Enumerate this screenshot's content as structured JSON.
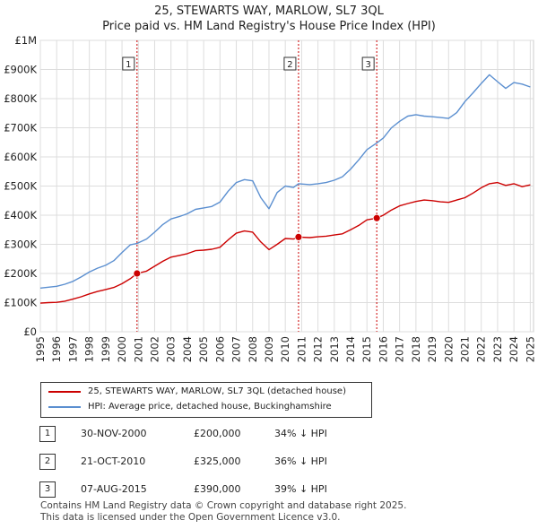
{
  "title_line1": "25, STEWARTS WAY, MARLOW, SL7 3QL",
  "title_line2": "Price paid vs. HM Land Registry's House Price Index (HPI)",
  "colors": {
    "property": "#cc0000",
    "hpi": "#5b8fd0",
    "marker_line": "#cc0000",
    "grid": "#dddddd"
  },
  "chart_data": {
    "type": "line",
    "title": "Price paid vs. HM Land Registry's House Price Index (HPI)",
    "xlim": [
      1995.0,
      2025.2
    ],
    "ylim": [
      0,
      1000000
    ],
    "y_ticks": [
      0,
      100000,
      200000,
      300000,
      400000,
      500000,
      600000,
      700000,
      800000,
      900000,
      1000000
    ],
    "y_tick_labels": [
      "£0",
      "£100K",
      "£200K",
      "£300K",
      "£400K",
      "£500K",
      "£600K",
      "£700K",
      "£800K",
      "£900K",
      "£1M"
    ],
    "x_ticks": [
      1995,
      1996,
      1997,
      1998,
      1999,
      2000,
      2001,
      2002,
      2003,
      2004,
      2005,
      2006,
      2007,
      2008,
      2009,
      2010,
      2011,
      2012,
      2013,
      2014,
      2015,
      2016,
      2017,
      2018,
      2019,
      2020,
      2021,
      2022,
      2023,
      2024,
      2025
    ],
    "x_tick_labels": [
      "1995",
      "1996",
      "1997",
      "1998",
      "1999",
      "2000",
      "2001",
      "2002",
      "2003",
      "2004",
      "2005",
      "2006",
      "2007",
      "2008",
      "2009",
      "2010",
      "2011",
      "2012",
      "2013",
      "2014",
      "2015",
      "2016",
      "2017",
      "2018",
      "2019",
      "2020",
      "2021",
      "2022",
      "2023",
      "2024",
      "2025"
    ],
    "series": [
      {
        "name": "25, STEWARTS WAY, MARLOW, SL7 3QL (detached house)",
        "color": "#cc0000",
        "x": [
          1995.0,
          1995.5,
          1996.0,
          1996.5,
          1997.0,
          1997.5,
          1998.0,
          1998.5,
          1999.0,
          1999.5,
          2000.0,
          2000.5,
          2000.92,
          2001.5,
          2002.0,
          2002.5,
          2003.0,
          2003.5,
          2004.0,
          2004.5,
          2005.0,
          2005.5,
          2006.0,
          2006.5,
          2007.0,
          2007.5,
          2008.0,
          2008.5,
          2009.0,
          2009.5,
          2010.0,
          2010.5,
          2010.81,
          2011.5,
          2012.0,
          2012.5,
          2013.0,
          2013.5,
          2014.0,
          2014.5,
          2015.0,
          2015.6,
          2016.0,
          2016.5,
          2017.0,
          2017.5,
          2018.0,
          2018.5,
          2019.0,
          2019.5,
          2020.0,
          2020.5,
          2021.0,
          2021.5,
          2022.0,
          2022.5,
          2023.0,
          2023.5,
          2024.0,
          2024.5,
          2025.0
        ],
        "values": [
          98000,
          100000,
          101000,
          105000,
          112000,
          120000,
          130000,
          138000,
          145000,
          152000,
          165000,
          182000,
          200000,
          208000,
          225000,
          242000,
          256000,
          262000,
          268000,
          278000,
          280000,
          283000,
          290000,
          315000,
          338000,
          346000,
          342000,
          308000,
          282000,
          300000,
          320000,
          318000,
          325000,
          323000,
          326000,
          328000,
          332000,
          336000,
          350000,
          365000,
          384000,
          390000,
          400000,
          418000,
          432000,
          440000,
          447000,
          452000,
          450000,
          446000,
          444000,
          452000,
          460000,
          476000,
          494000,
          508000,
          512000,
          502000,
          508000,
          498000,
          504000
        ]
      },
      {
        "name": "HPI: Average price, detached house, Buckinghamshire",
        "color": "#5b8fd0",
        "x": [
          1995.0,
          1995.5,
          1996.0,
          1996.5,
          1997.0,
          1997.5,
          1998.0,
          1998.5,
          1999.0,
          1999.5,
          2000.0,
          2000.5,
          2000.92,
          2001.5,
          2002.0,
          2002.5,
          2003.0,
          2003.5,
          2004.0,
          2004.5,
          2005.0,
          2005.5,
          2006.0,
          2006.5,
          2007.0,
          2007.5,
          2008.0,
          2008.5,
          2009.0,
          2009.5,
          2010.0,
          2010.5,
          2010.81,
          2011.5,
          2012.0,
          2012.5,
          2013.0,
          2013.5,
          2014.0,
          2014.5,
          2015.0,
          2015.6,
          2016.0,
          2016.5,
          2017.0,
          2017.5,
          2018.0,
          2018.5,
          2019.0,
          2019.5,
          2020.0,
          2020.5,
          2021.0,
          2021.5,
          2022.0,
          2022.5,
          2023.0,
          2023.5,
          2024.0,
          2024.5,
          2025.0
        ],
        "values": [
          150000,
          153000,
          156000,
          163000,
          173000,
          188000,
          205000,
          218000,
          228000,
          244000,
          272000,
          298000,
          303000,
          318000,
          342000,
          368000,
          387000,
          395000,
          405000,
          420000,
          425000,
          430000,
          445000,
          482000,
          512000,
          522000,
          518000,
          460000,
          422000,
          478000,
          500000,
          495000,
          508000,
          505000,
          508000,
          512000,
          520000,
          532000,
          558000,
          590000,
          625000,
          648000,
          665000,
          700000,
          722000,
          740000,
          745000,
          740000,
          738000,
          735000,
          732000,
          752000,
          790000,
          820000,
          852000,
          882000,
          858000,
          835000,
          855000,
          850000,
          840000
        ]
      }
    ],
    "markers": [
      {
        "label": "1",
        "x": 2000.92,
        "y": 200000
      },
      {
        "label": "2",
        "x": 2010.81,
        "y": 325000
      },
      {
        "label": "3",
        "x": 2015.6,
        "y": 390000
      }
    ]
  },
  "legend": {
    "property_label": "25, STEWARTS WAY, MARLOW, SL7 3QL (detached house)",
    "hpi_label": "HPI: Average price, detached house, Buckinghamshire"
  },
  "transactions": [
    {
      "num": "1",
      "date": "30-NOV-2000",
      "price": "£200,000",
      "hpi": "34% ↓ HPI"
    },
    {
      "num": "2",
      "date": "21-OCT-2010",
      "price": "£325,000",
      "hpi": "36% ↓ HPI"
    },
    {
      "num": "3",
      "date": "07-AUG-2015",
      "price": "£390,000",
      "hpi": "39% ↓ HPI"
    }
  ],
  "footer": {
    "line1": "Contains HM Land Registry data © Crown copyright and database right 2025.",
    "line2": "This data is licensed under the Open Government Licence v3.0."
  }
}
